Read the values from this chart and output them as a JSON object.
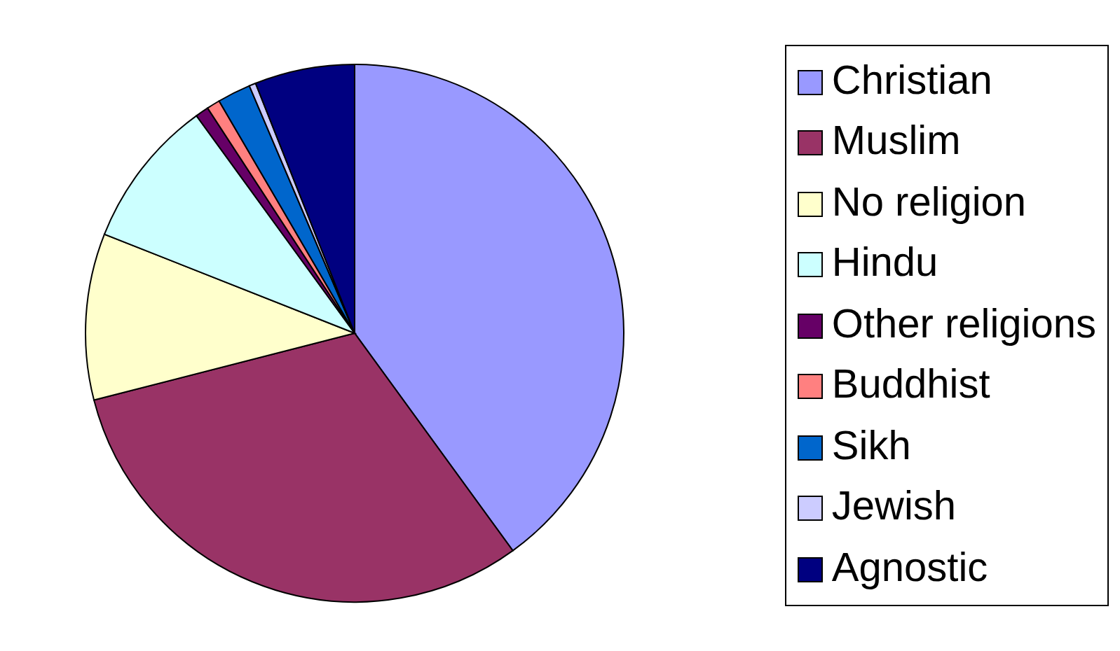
{
  "chart_data": {
    "type": "pie",
    "categories": [
      "Christian",
      "Muslim",
      "No religion",
      "Hindu",
      "Other religions",
      "Buddhist",
      "Sikh",
      "Jewish",
      "Agnostic"
    ],
    "values": [
      40,
      31,
      10,
      9,
      0.8,
      0.8,
      2,
      0.4,
      6
    ],
    "colors": [
      "#9999ff",
      "#993366",
      "#ffffcc",
      "#ccffff",
      "#660066",
      "#ff8080",
      "#0066cc",
      "#ccccff",
      "#000080"
    ],
    "legend": "right"
  }
}
